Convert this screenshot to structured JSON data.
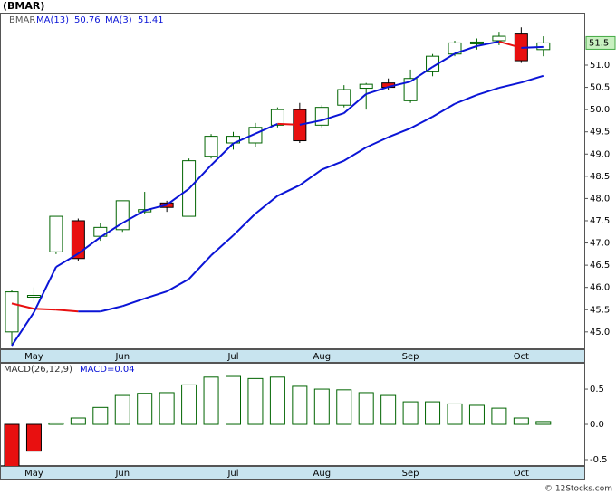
{
  "chart_data": [
    {
      "type": "candlestick",
      "title": "(BMAR)",
      "symbol": "BMAR",
      "categories": [
        null,
        "May",
        null,
        null,
        null,
        "Jun",
        null,
        null,
        null,
        null,
        "Jul",
        null,
        null,
        null,
        "Aug",
        null,
        null,
        null,
        "Sep",
        null,
        null,
        null,
        null,
        "Oct",
        null
      ],
      "open": [
        45.0,
        45.78,
        46.8,
        47.5,
        47.15,
        47.3,
        47.7,
        47.9,
        47.6,
        48.95,
        49.25,
        49.25,
        49.65,
        50.0,
        49.65,
        50.1,
        50.48,
        50.6,
        50.2,
        50.85,
        51.25,
        51.48,
        51.55,
        51.7,
        51.35
      ],
      "high": [
        45.95,
        46.0,
        47.6,
        47.55,
        47.45,
        47.95,
        48.15,
        47.95,
        48.9,
        49.45,
        49.5,
        49.7,
        50.05,
        50.15,
        50.1,
        50.55,
        50.6,
        50.7,
        50.9,
        51.25,
        51.55,
        51.6,
        51.75,
        51.85,
        51.65
      ],
      "low": [
        44.7,
        45.68,
        46.75,
        46.6,
        47.05,
        47.25,
        47.65,
        47.7,
        47.6,
        48.9,
        49.1,
        49.15,
        49.6,
        49.25,
        49.6,
        50.05,
        50.0,
        50.45,
        50.15,
        50.75,
        51.2,
        51.35,
        51.45,
        51.05,
        51.2
      ],
      "close": [
        45.9,
        45.82,
        47.6,
        46.65,
        47.35,
        47.95,
        47.75,
        47.8,
        48.85,
        49.4,
        49.4,
        49.6,
        50.0,
        49.3,
        50.05,
        50.45,
        50.57,
        50.5,
        50.7,
        51.2,
        51.5,
        51.52,
        51.65,
        51.1,
        51.5
      ],
      "up_color": "#006400",
      "down_color": "#e81010",
      "series": [
        {
          "name": "MA(13)",
          "color": "#0a14d6",
          "values": [
            45.64,
            45.52,
            45.5,
            45.46,
            45.46,
            45.58,
            45.75,
            45.91,
            46.19,
            46.72,
            47.17,
            47.66,
            48.06,
            48.3,
            48.65,
            48.85,
            49.15,
            49.38,
            49.58,
            49.84,
            50.13,
            50.33,
            50.49,
            50.61,
            50.76
          ]
        },
        {
          "name": "MA(3)",
          "color": "#0a14d6",
          "values": [
            44.69,
            45.44,
            46.46,
            46.76,
            47.13,
            47.45,
            47.73,
            47.86,
            48.22,
            48.75,
            49.24,
            49.46,
            49.68,
            49.66,
            49.76,
            49.92,
            50.35,
            50.51,
            50.63,
            50.96,
            51.26,
            51.43,
            51.53,
            51.39,
            51.41
          ]
        }
      ],
      "falling_color": "#e81010",
      "ylim": [
        44.63,
        52.16
      ],
      "yticks": [
        {
          "value": 45.0,
          "label": "45.0"
        },
        45.5,
        {
          "value": 46.0,
          "label": "46.0"
        },
        46.5,
        {
          "value": 47.0,
          "label": "47.0"
        },
        47.5,
        {
          "value": 48.0,
          "label": "48.0"
        },
        48.5,
        {
          "value": 49.0,
          "label": "49.0"
        },
        49.5,
        {
          "value": 50.0,
          "label": "50.0"
        },
        50.5,
        {
          "value": 51.0,
          "label": "51.0"
        },
        51.5
      ]
    },
    {
      "type": "bar",
      "legend": [
        "MACD(26,12,9)",
        "MACD=0.04"
      ],
      "values": [
        -0.65,
        -0.38,
        0.02,
        0.09,
        0.24,
        0.41,
        0.44,
        0.45,
        0.56,
        0.67,
        0.68,
        0.65,
        0.67,
        0.54,
        0.5,
        0.49,
        0.45,
        0.41,
        0.32,
        0.32,
        0.29,
        0.27,
        0.23,
        0.09,
        0.04
      ],
      "up_color": "#006400",
      "down_color": "#e81010",
      "ylim": [
        -0.59,
        0.86
      ],
      "yticks": [
        -0.5,
        {
          "value": 0.0,
          "label": "0.0"
        },
        0.5
      ]
    }
  ],
  "footer": "© 12Stocks.com"
}
